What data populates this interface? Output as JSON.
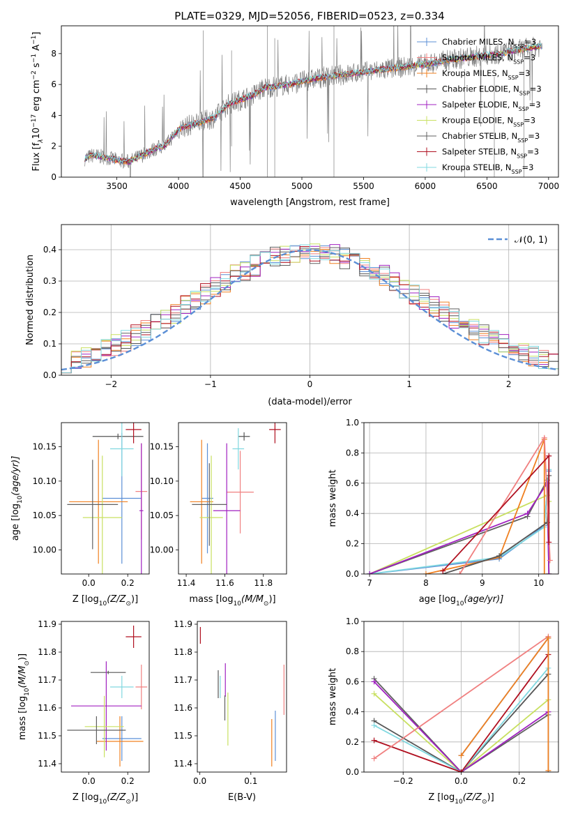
{
  "figure_title": "PLATE=0329, MJD=52056, FIBERID=0523, z=0.334",
  "colors": {
    "chabrier_miles": "#5b8fd6",
    "salpeter_miles": "#f08080",
    "kroupa_miles": "#f08020",
    "chabrier_elodie": "#555555",
    "salpeter_elodie": "#a020c0",
    "kroupa_elodie": "#c8e060",
    "chabrier_stelib": "#606060",
    "salpeter_stelib": "#b01020",
    "kroupa_stelib": "#80d8e0",
    "normal": "#5b8fd6",
    "data": "#808080"
  },
  "legend_spectrum": [
    {
      "label": "Chabrier MILES, N",
      "sub": "SSP",
      "suffix": "=3",
      "color": "#5b8fd6"
    },
    {
      "label": "Salpeter MILES, N",
      "sub": "SSP",
      "suffix": "=3",
      "color": "#f08080"
    },
    {
      "label": "Kroupa MILES, N",
      "sub": "SSP",
      "suffix": "=3",
      "color": "#f08020"
    },
    {
      "label": "Chabrier ELODIE, N",
      "sub": "SSP",
      "suffix": "=3",
      "color": "#555555"
    },
    {
      "label": "Salpeter ELODIE, N",
      "sub": "SSP",
      "suffix": "=3",
      "color": "#a020c0"
    },
    {
      "label": "Kroupa ELODIE, N",
      "sub": "SSP",
      "suffix": "=3",
      "color": "#c8e060"
    },
    {
      "label": "Chabrier STELIB, N",
      "sub": "SSP",
      "suffix": "=3",
      "color": "#606060"
    },
    {
      "label": "Salpeter STELIB, N",
      "sub": "SSP",
      "suffix": "=3",
      "color": "#b01020"
    },
    {
      "label": "Kroupa STELIB, N",
      "sub": "SSP",
      "suffix": "=3",
      "color": "#80d8e0"
    }
  ],
  "legend_hist": {
    "label": "𝒩(0, 1)"
  },
  "chart_data": [
    {
      "type": "line",
      "id": "spectrum",
      "xlabel": "wavelength [Angstrom, rest frame]",
      "ylabel": "Flux [f",
      "ylabel_parts": [
        "Flux [f",
        "λ",
        "10",
        "−17",
        " erg cm",
        "−2",
        " s",
        "−1",
        " A",
        "−1",
        "]"
      ],
      "xlim": [
        3050,
        7080
      ],
      "ylim": [
        0,
        9.8
      ],
      "xticks": [
        3500,
        4000,
        4500,
        5000,
        5500,
        6000,
        6500,
        7000
      ],
      "yticks": [
        0,
        2,
        4,
        6,
        8
      ],
      "continuum_model": {
        "x": [
          3240,
          3300,
          3400,
          3500,
          3600,
          3700,
          3800,
          3900,
          4000,
          4100,
          4200,
          4300,
          4400,
          4500,
          4600,
          4700,
          4800,
          4900,
          5000,
          5200,
          5400,
          5600,
          5800,
          6000,
          6200,
          6400,
          6600,
          6800,
          6950
        ],
        "y": [
          1.2,
          1.4,
          1.3,
          1.1,
          1.0,
          1.4,
          1.8,
          2.1,
          3.1,
          3.4,
          3.6,
          3.9,
          4.7,
          5.0,
          5.3,
          5.8,
          5.9,
          6.0,
          6.2,
          6.5,
          6.7,
          6.9,
          7.1,
          7.3,
          7.6,
          7.8,
          8.0,
          8.3,
          8.5
        ]
      }
    },
    {
      "type": "line",
      "id": "residual_hist",
      "xlabel": "(data-model)/error",
      "ylabel": "Normed distribution",
      "xlim": [
        -2.5,
        2.5
      ],
      "ylim": [
        0,
        0.48
      ],
      "xticks": [
        -2,
        -1,
        0,
        1,
        2
      ],
      "yticks": [
        0.0,
        0.1,
        0.2,
        0.3,
        0.4
      ],
      "grid": true
    },
    {
      "type": "scatter",
      "id": "age_vs_Z",
      "xlabel": "Z [log",
      "xlabel_parts": [
        "Z [log",
        "10",
        "(Z/Z",
        "⊙",
        ")]"
      ],
      "ylabel_parts": [
        "age  [log",
        "10",
        "(age/yr)]"
      ],
      "xlim": [
        -0.14,
        0.31
      ],
      "ylim": [
        9.965,
        10.185
      ],
      "xticks": [
        0.0,
        0.2
      ],
      "yticks": [
        10.0,
        10.05,
        10.1,
        10.15
      ],
      "points": [
        {
          "x": 0.17,
          "xerr": 0.1,
          "y": 10.075,
          "yerr": 0.095,
          "color": "#5b8fd6"
        },
        {
          "x": 0.27,
          "xerr": 0.03,
          "y": 10.085,
          "yerr": 0.07,
          "color": "#f08080"
        },
        {
          "x": 0.05,
          "xerr": 0.15,
          "y": 10.07,
          "yerr": 0.09,
          "color": "#f08020"
        },
        {
          "x": 0.15,
          "xerr": 0.13,
          "y": 10.165,
          "yerr": 0.004,
          "color": "#555555"
        },
        {
          "x": 0.27,
          "xerr": 0.01,
          "y": 10.057,
          "yerr": 0.098,
          "color": "#a020c0"
        },
        {
          "x": 0.07,
          "xerr": 0.1,
          "y": 10.047,
          "yerr": 0.09,
          "color": "#c8e060"
        },
        {
          "x": 0.02,
          "xerr": 0.13,
          "y": 10.066,
          "yerr": 0.065,
          "color": "#606060"
        },
        {
          "x": 0.23,
          "xerr": 0.04,
          "y": 10.175,
          "yerr": 0.02,
          "color": "#b01020"
        },
        {
          "x": 0.17,
          "xerr": 0.06,
          "y": 10.147,
          "yerr": 0.04,
          "color": "#80d8e0"
        }
      ]
    },
    {
      "type": "scatter",
      "id": "age_vs_mass",
      "xlabel_parts": [
        "mass [log",
        "10",
        "(M/M",
        "⊙",
        ")]"
      ],
      "xlim": [
        11.36,
        11.92
      ],
      "ylim": [
        9.965,
        10.185
      ],
      "xticks": [
        11.4,
        11.6,
        11.8
      ],
      "yticks": [
        10.0,
        10.05,
        10.1,
        10.15
      ],
      "points": [
        {
          "x": 11.51,
          "xerr": 0.03,
          "y": 10.075,
          "yerr": 0.08,
          "color": "#5b8fd6"
        },
        {
          "x": 11.68,
          "xerr": 0.07,
          "y": 10.084,
          "yerr": 0.06,
          "color": "#f08080"
        },
        {
          "x": 11.48,
          "xerr": 0.06,
          "y": 10.07,
          "yerr": 0.09,
          "color": "#f08020"
        },
        {
          "x": 11.7,
          "xerr": 0.03,
          "y": 10.165,
          "yerr": 0.006,
          "color": "#555555"
        },
        {
          "x": 11.61,
          "xerr": 0.07,
          "y": 10.057,
          "yerr": 0.098,
          "color": "#a020c0"
        },
        {
          "x": 11.53,
          "xerr": 0.06,
          "y": 10.047,
          "yerr": 0.09,
          "color": "#c8e060"
        },
        {
          "x": 11.52,
          "xerr": 0.09,
          "y": 10.066,
          "yerr": 0.06,
          "color": "#606060"
        },
        {
          "x": 11.86,
          "xerr": 0.03,
          "y": 10.175,
          "yerr": 0.02,
          "color": "#b01020"
        },
        {
          "x": 11.67,
          "xerr": 0.03,
          "y": 10.147,
          "yerr": 0.03,
          "color": "#80d8e0"
        }
      ]
    },
    {
      "type": "line",
      "id": "weight_vs_age",
      "xlabel_parts": [
        "age  [log",
        "10",
        "(age/yr)]"
      ],
      "ylabel": "mass weight",
      "xlim": [
        6.9,
        10.35
      ],
      "ylim": [
        0,
        1.0
      ],
      "xticks": [
        7,
        8,
        9,
        10
      ],
      "yticks": [
        0.0,
        0.2,
        0.4,
        0.6,
        0.8,
        1.0
      ],
      "grid": true,
      "series": [
        {
          "color": "#c8e060",
          "x": [
            7.0,
            10.15,
            10.18,
            10.18
          ],
          "y": [
            0.0,
            0.52,
            0.48,
            0.0
          ]
        },
        {
          "color": "#606060",
          "x": [
            7.0,
            9.8,
            10.15,
            10.18
          ],
          "y": [
            0.0,
            0.38,
            0.62,
            0.0
          ]
        },
        {
          "color": "#5b8fd6",
          "x": [
            7.0,
            9.3,
            10.1,
            10.18
          ],
          "y": [
            0.0,
            0.1,
            0.32,
            0.68
          ]
        },
        {
          "color": "#80d8e0",
          "x": [
            7.0,
            9.3,
            10.1,
            10.18
          ],
          "y": [
            0.0,
            0.11,
            0.31,
            0.69
          ]
        },
        {
          "color": "#a020c0",
          "x": [
            7.0,
            9.8,
            10.15,
            10.18
          ],
          "y": [
            0.0,
            0.4,
            0.6,
            0.0
          ]
        },
        {
          "color": "#f08020",
          "x": [
            8.0,
            9.3,
            10.1,
            10.1
          ],
          "y": [
            0.0,
            0.11,
            0.89,
            0.0
          ]
        },
        {
          "color": "#555555",
          "x": [
            8.3,
            9.3,
            10.15,
            10.18
          ],
          "y": [
            0.0,
            0.12,
            0.34,
            0.65
          ]
        },
        {
          "color": "#f08080",
          "x": [
            8.6,
            10.1,
            10.2
          ],
          "y": [
            0.0,
            0.9,
            0.09
          ]
        },
        {
          "color": "#b01020",
          "x": [
            8.3,
            10.18,
            10.18
          ],
          "y": [
            0.02,
            0.78,
            0.21
          ]
        }
      ]
    },
    {
      "type": "scatter",
      "id": "mass_vs_Z",
      "xlabel_parts": [
        "Z [log",
        "10",
        "(Z/Z",
        "⊙",
        ")]"
      ],
      "ylabel_parts": [
        "mass [log",
        "10",
        "(M/M",
        "⊙",
        ")]"
      ],
      "xlim": [
        -0.14,
        0.31
      ],
      "ylim": [
        11.37,
        11.91
      ],
      "xticks": [
        0.0,
        0.2
      ],
      "yticks": [
        11.4,
        11.5,
        11.6,
        11.7,
        11.8,
        11.9
      ],
      "points": [
        {
          "x": 0.17,
          "xerr": 0.1,
          "y": 11.49,
          "yerr": 0.08,
          "color": "#5b8fd6"
        },
        {
          "x": 0.27,
          "xerr": 0.03,
          "y": 11.675,
          "yerr": 0.08,
          "color": "#f08080"
        },
        {
          "x": 0.16,
          "xerr": 0.12,
          "y": 11.48,
          "yerr": 0.09,
          "color": "#f08020"
        },
        {
          "x": 0.1,
          "xerr": 0.09,
          "y": 11.727,
          "yerr": 0.006,
          "color": "#555555"
        },
        {
          "x": 0.09,
          "xerr": 0.18,
          "y": 11.607,
          "yerr": 0.16,
          "color": "#a020c0"
        },
        {
          "x": 0.08,
          "xerr": 0.1,
          "y": 11.533,
          "yerr": 0.11,
          "color": "#c8e060"
        },
        {
          "x": 0.04,
          "xerr": 0.15,
          "y": 11.52,
          "yerr": 0.05,
          "color": "#606060"
        },
        {
          "x": 0.23,
          "xerr": 0.04,
          "y": 11.855,
          "yerr": 0.04,
          "color": "#b01020"
        },
        {
          "x": 0.17,
          "xerr": 0.06,
          "y": 11.675,
          "yerr": 0.04,
          "color": "#80d8e0"
        }
      ]
    },
    {
      "type": "scatter",
      "id": "mass_vs_ebv",
      "xlabel": "E(B-V)",
      "xlim": [
        -0.005,
        0.17
      ],
      "ylim": [
        11.37,
        11.91
      ],
      "xticks": [
        0.0,
        0.1
      ],
      "yticks": [
        11.4,
        11.5,
        11.6,
        11.7,
        11.8,
        11.9
      ],
      "points": [
        {
          "x": 0.148,
          "y": 11.5,
          "yerr": 0.09,
          "color": "#5b8fd6"
        },
        {
          "x": 0.165,
          "y": 11.665,
          "yerr": 0.09,
          "color": "#f08080"
        },
        {
          "x": 0.141,
          "y": 11.475,
          "yerr": 0.085,
          "color": "#f08020"
        },
        {
          "x": 0.036,
          "y": 11.685,
          "yerr": 0.05,
          "color": "#555555"
        },
        {
          "x": 0.05,
          "y": 11.7,
          "yerr": 0.06,
          "color": "#a020c0"
        },
        {
          "x": 0.055,
          "y": 11.56,
          "yerr": 0.095,
          "color": "#c8e060"
        },
        {
          "x": 0.049,
          "y": 11.6,
          "yerr": 0.045,
          "color": "#606060"
        },
        {
          "x": 0.001,
          "y": 11.86,
          "yerr": 0.03,
          "color": "#b01020"
        },
        {
          "x": 0.04,
          "y": 11.675,
          "yerr": 0.04,
          "color": "#80d8e0"
        }
      ]
    },
    {
      "type": "line",
      "id": "weight_vs_Z",
      "xlabel_parts": [
        "Z [log",
        "10",
        "(Z/Z",
        "⊙",
        ")]"
      ],
      "ylabel": "mass weight",
      "xlim": [
        -0.335,
        0.335
      ],
      "ylim": [
        0,
        1.0
      ],
      "xticks": [
        -0.2,
        0.0,
        0.2
      ],
      "yticks": [
        0.0,
        0.2,
        0.4,
        0.6,
        0.8,
        1.0
      ],
      "grid": true,
      "series": [
        {
          "color": "#c8e060",
          "x": [
            -0.3,
            0.0,
            0.3
          ],
          "y": [
            0.52,
            0.0,
            0.48
          ]
        },
        {
          "color": "#606060",
          "x": [
            -0.3,
            0.0,
            0.3
          ],
          "y": [
            0.62,
            0.0,
            0.38
          ]
        },
        {
          "color": "#a020c0",
          "x": [
            -0.3,
            0.0,
            0.3
          ],
          "y": [
            0.6,
            0.0,
            0.4
          ]
        },
        {
          "color": "#555555",
          "x": [
            -0.3,
            0.0,
            0.3
          ],
          "y": [
            0.34,
            0.0,
            0.65
          ]
        },
        {
          "color": "#80d8e0",
          "x": [
            -0.3,
            0.0,
            0.3
          ],
          "y": [
            0.31,
            0.0,
            0.69
          ]
        },
        {
          "color": "#b01020",
          "x": [
            -0.3,
            0.0,
            0.3
          ],
          "y": [
            0.21,
            0.0,
            0.78
          ]
        },
        {
          "color": "#f08080",
          "x": [
            -0.3,
            0.3
          ],
          "y": [
            0.09,
            0.9
          ]
        },
        {
          "color": "#5b8fd6",
          "x": [
            0.0,
            0.3,
            0.3
          ],
          "y": [
            0.11,
            0.89,
            0.0
          ]
        },
        {
          "color": "#f08020",
          "x": [
            0.0,
            0.3,
            0.3
          ],
          "y": [
            0.11,
            0.89,
            0.01
          ]
        }
      ]
    }
  ]
}
